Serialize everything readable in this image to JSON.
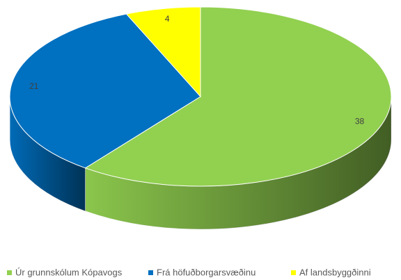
{
  "chart_data": {
    "type": "pie",
    "categories": [
      "Úr grunnskólum Kópavogs",
      "Frá höfuðborgarsvæðinu",
      "Af landsbyggðinni"
    ],
    "values": [
      38,
      21,
      4
    ],
    "colors": [
      "#92d050",
      "#0070c0",
      "#ffff00"
    ],
    "legend": "bottom"
  }
}
